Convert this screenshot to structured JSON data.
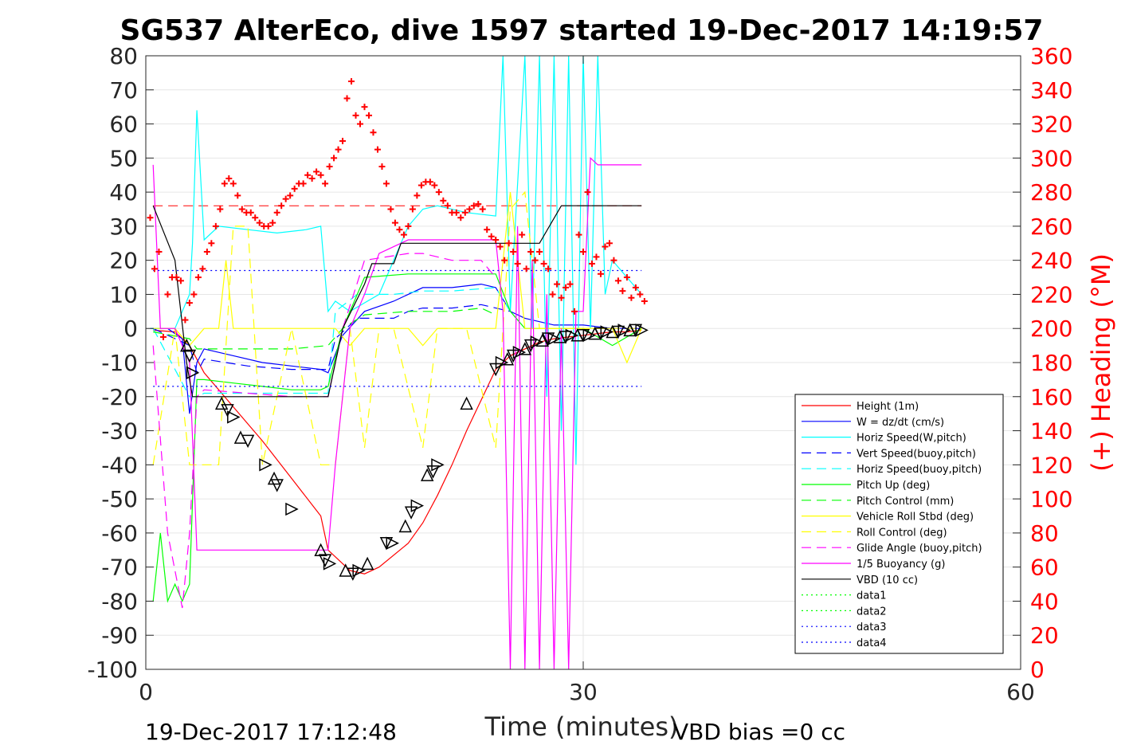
{
  "figure": {
    "title": "SG537 AlterEco, dive 1597 started 19-Dec-2017 14:19:57",
    "footer_left": "19-Dec-2017 17:12:48",
    "footer_right": "VBD bias =0 cc",
    "colors": {
      "height": "#ff0000",
      "w": "#0000ff",
      "hspeed": "#00ffff",
      "vspeed_buoy": "#0000ff",
      "hspeed_buoy": "#00ffff",
      "pitch": "#00ff00",
      "pitch_ctl": "#00ff00",
      "roll": "#ffff00",
      "roll_ctl": "#ffff00",
      "glide": "#ff00ff",
      "buoy": "#ff00ff",
      "vbd": "#000000",
      "heading": "#ff0000",
      "data1": "#00ff00",
      "data2": "#00ff00",
      "data3": "#0000ff",
      "data4": "#0000ff"
    }
  },
  "chart_data": {
    "type": "line",
    "title": "SG537 AlterEco, dive 1597 started 19-Dec-2017 14:19:57",
    "xlabel": "Time (minutes)",
    "ylabel": "",
    "y2label": "(+) Heading (°M)",
    "xlim": [
      0,
      60
    ],
    "ylim": [
      -100,
      80
    ],
    "y2lim": [
      0,
      360
    ],
    "xticks": [
      0,
      30,
      60
    ],
    "yticks": [
      80,
      70,
      60,
      50,
      40,
      30,
      20,
      10,
      0,
      -10,
      -20,
      -30,
      -40,
      -50,
      -60,
      -70,
      -80,
      -90,
      -100
    ],
    "y2ticks": [
      360,
      340,
      320,
      300,
      280,
      260,
      240,
      220,
      200,
      180,
      160,
      140,
      120,
      100,
      80,
      60,
      40,
      20,
      0
    ],
    "grid": true,
    "legend_position": "bottom-right",
    "legend": [
      "Height (1m)",
      "W = dz/dt (cm/s)",
      "Horiz Speed(W,pitch)",
      "Vert Speed(buoy,pitch)",
      "Horiz Speed(buoy,pitch)",
      "Pitch Up (deg)",
      "Pitch Control (mm)",
      "Vehicle Roll Stbd (deg)",
      "Roll Control (deg)",
      "Glide Angle (buoy,pitch)",
      "1/5 Buoyancy (g)",
      "VBD (10 cc)",
      "data1",
      "data2",
      "data3",
      "data4"
    ],
    "series": [
      {
        "key": "height",
        "name": "Height (1m)",
        "style": "solid",
        "x": [
          0.5,
          2,
          3,
          4,
          6,
          8,
          10,
          12,
          12.5,
          13.5,
          14,
          15,
          16,
          18,
          19,
          20,
          21,
          22,
          23,
          24,
          25,
          26,
          27,
          28,
          29,
          30,
          31,
          32,
          33,
          34
        ],
        "y": [
          -0.5,
          -1,
          -5,
          -13,
          -23,
          -33,
          -44,
          -55,
          -65,
          -69,
          -71,
          -72,
          -70,
          -63,
          -57,
          -49,
          -40,
          -30,
          -21,
          -12,
          -8,
          -6,
          -4,
          -3,
          -2.5,
          -2,
          -1.5,
          -1,
          -1,
          -0.5
        ]
      },
      {
        "key": "w",
        "name": "W = dz/dt (cm/s)",
        "style": "solid",
        "x": [
          0.3,
          1.5,
          2.5,
          3,
          3.5,
          4,
          6,
          8,
          10,
          12,
          12.5,
          13.5,
          15,
          17,
          18,
          19,
          21,
          23,
          24,
          25,
          26,
          27,
          28,
          30,
          32,
          34
        ],
        "y": [
          0,
          0,
          -3,
          -25,
          -10,
          -6,
          -8,
          -10,
          -11,
          -12,
          -13,
          -2,
          5,
          8,
          10,
          12,
          12,
          13,
          12,
          5,
          3,
          2,
          1,
          1,
          0,
          0
        ]
      },
      {
        "key": "hspeed",
        "name": "Horiz Speed(W,pitch)",
        "style": "solid",
        "x": [
          0.3,
          2,
          3,
          3.2,
          3.5,
          4,
          5,
          7,
          9,
          11,
          12,
          12.5,
          13,
          14,
          16,
          18,
          19,
          20,
          22,
          24,
          24.5,
          25,
          26,
          26.5,
          27,
          27.5,
          28,
          28.5,
          29,
          29.5,
          30,
          30.5,
          31,
          31.5,
          32,
          33,
          34
        ],
        "y": [
          0,
          0,
          10,
          25,
          64,
          26,
          30,
          29,
          28,
          29,
          30,
          5,
          8,
          5,
          10,
          30,
          35,
          36,
          34,
          33,
          80,
          5,
          80,
          0,
          80,
          -20,
          80,
          -30,
          80,
          -40,
          80,
          0,
          80,
          10,
          20,
          15,
          10
        ]
      },
      {
        "key": "vspeed_buoy",
        "name": "Vert Speed(buoy,pitch)",
        "style": "dash",
        "x": [
          0.5,
          3,
          3.5,
          4,
          7,
          10,
          12.5,
          13,
          14.5,
          17,
          18,
          19,
          21,
          23,
          24,
          25
        ],
        "y": [
          0,
          -5,
          -13,
          -9,
          -11,
          -12,
          -12,
          -3,
          3,
          3,
          5,
          6,
          6,
          7,
          6,
          5
        ]
      },
      {
        "key": "hspeed_buoy",
        "name": "Horiz Speed(buoy,pitch)",
        "style": "dash",
        "x": [
          0.5,
          3,
          3.5,
          4,
          7,
          10,
          12.5,
          13,
          14.5,
          17,
          19,
          21,
          24,
          25
        ],
        "y": [
          0,
          -20,
          -20,
          -19,
          -19,
          -19,
          -19,
          5,
          10,
          10,
          11,
          11,
          12,
          5
        ]
      },
      {
        "key": "pitch",
        "name": "Pitch Up (deg)",
        "style": "solid",
        "x": [
          0.5,
          1,
          1.5,
          2,
          2.5,
          3,
          3.5,
          4,
          6,
          8,
          10,
          12,
          12.5,
          13.5,
          15,
          18,
          20,
          22,
          24,
          25,
          26,
          28,
          30,
          32,
          34
        ],
        "y": [
          -80,
          -60,
          -80,
          -75,
          -80,
          -75,
          -15,
          -15,
          -16,
          -17,
          -18,
          -18,
          -17,
          0,
          15,
          16,
          16,
          16,
          16,
          5,
          0,
          0,
          0,
          -5,
          0
        ]
      },
      {
        "key": "pitch_ctl",
        "name": "Pitch Control (mm)",
        "style": "dash",
        "x": [
          0.5,
          3,
          3.5,
          4,
          7,
          10,
          12.5,
          13.5,
          15,
          18,
          19,
          21,
          23,
          24
        ],
        "y": [
          -1,
          -3,
          -6,
          -6,
          -6,
          -6,
          -5,
          0,
          4,
          5,
          5,
          5,
          6,
          4
        ]
      },
      {
        "key": "roll",
        "name": "Vehicle Roll Stbd (deg)",
        "style": "solid",
        "x": [
          0.5,
          2,
          3,
          4,
          5,
          5.5,
          6,
          7,
          8,
          10,
          11,
          12,
          13,
          14,
          15,
          16,
          17,
          18,
          19,
          20,
          21,
          22,
          23,
          24,
          25,
          26,
          27,
          28,
          30,
          32,
          33,
          34
        ],
        "y": [
          0,
          0,
          -5,
          0,
          0,
          20,
          0,
          0,
          0,
          0,
          0,
          0,
          0,
          -5,
          0,
          0,
          0,
          0,
          -5,
          0,
          0,
          0,
          0,
          0,
          40,
          0,
          0,
          0,
          0,
          0,
          -10,
          0
        ]
      },
      {
        "key": "roll_ctl",
        "name": "Roll Control (deg)",
        "style": "dash",
        "x": [
          0.5,
          2,
          3,
          4,
          5,
          6,
          7,
          8,
          10,
          12,
          13,
          14,
          15,
          16,
          17,
          19,
          20,
          22,
          24,
          25,
          26,
          27,
          28,
          30,
          32,
          34
        ],
        "y": [
          -40,
          0,
          -40,
          -40,
          -40,
          30,
          30,
          -40,
          0,
          -40,
          -40,
          0,
          -35,
          0,
          0,
          -35,
          0,
          0,
          -35,
          35,
          40,
          0,
          0,
          0,
          0,
          0
        ]
      },
      {
        "key": "glide",
        "name": "Glide Angle (buoy,pitch)",
        "style": "dash",
        "x": [
          0.5,
          1.5,
          2.5,
          3,
          3.5,
          4,
          7,
          10,
          12.5,
          13.5,
          15,
          18,
          19,
          21,
          23,
          24
        ],
        "y": [
          -5,
          -60,
          -82,
          -60,
          -20,
          -18,
          -19,
          -20,
          -20,
          0,
          20,
          22,
          22,
          20,
          20,
          15
        ]
      },
      {
        "key": "buoy",
        "name": "1/5 Buoyancy (g)",
        "style": "solid",
        "x": [
          0.5,
          1,
          2,
          3,
          3.5,
          5,
          8,
          10,
          12,
          12.5,
          13,
          14,
          15,
          16,
          18,
          20,
          22,
          24,
          24.5,
          25,
          25.5,
          26,
          26.5,
          27,
          27.5,
          28,
          28.5,
          29,
          29.5,
          30,
          30.5,
          31,
          32,
          33,
          34
        ],
        "y": [
          48,
          0,
          0,
          -10,
          -65,
          -65,
          -65,
          -65,
          -65,
          -65,
          -40,
          0,
          10,
          22,
          26,
          26,
          26,
          26,
          5,
          -100,
          30,
          -100,
          20,
          -100,
          10,
          -100,
          0,
          -100,
          5,
          5,
          50,
          48,
          48,
          48,
          48
        ]
      },
      {
        "key": "vbd",
        "name": "VBD (10 cc)",
        "style": "solid",
        "x": [
          0.5,
          2,
          2.8,
          3.2,
          7,
          10,
          12.5,
          13.5,
          15,
          15.5,
          16,
          17,
          17.5,
          18,
          24,
          24.5,
          27,
          28.5,
          29,
          30,
          31,
          34
        ],
        "y": [
          36,
          20,
          -10,
          -20,
          -20,
          -20,
          -20,
          0,
          13,
          19,
          19,
          19,
          25,
          25,
          25,
          25,
          25,
          36,
          36,
          36,
          36,
          36
        ]
      },
      {
        "key": "data1",
        "name": "data1",
        "style": "dot",
        "x": [],
        "y": []
      },
      {
        "key": "data2",
        "name": "data2",
        "style": "dot",
        "x": [],
        "y": []
      },
      {
        "key": "data3",
        "name": "data3",
        "style": "dot",
        "x": [
          0.5,
          34
        ],
        "y": [
          17,
          17
        ]
      },
      {
        "key": "data4",
        "name": "data4",
        "style": "dot",
        "x": [
          0.5,
          34
        ],
        "y": [
          -17,
          -17
        ]
      }
    ],
    "heading_reference": {
      "y2": 272
    },
    "heading_points": {
      "y2_units": true,
      "x": [
        0.3,
        0.6,
        0.9,
        1.2,
        1.5,
        1.8,
        2.1,
        2.4,
        2.7,
        3.0,
        3.3,
        3.6,
        3.9,
        4.2,
        4.5,
        4.8,
        5.1,
        5.4,
        5.7,
        6.0,
        6.3,
        6.6,
        6.9,
        7.2,
        7.5,
        7.8,
        8.1,
        8.4,
        8.7,
        9.0,
        9.3,
        9.6,
        9.9,
        10.2,
        10.5,
        10.8,
        11.1,
        11.4,
        11.7,
        12.0,
        12.3,
        12.6,
        12.9,
        13.2,
        13.5,
        13.8,
        14.1,
        14.4,
        14.7,
        15.0,
        15.3,
        15.6,
        15.9,
        16.2,
        16.5,
        16.8,
        17.1,
        17.4,
        17.7,
        18.0,
        18.3,
        18.6,
        18.9,
        19.2,
        19.5,
        19.8,
        20.1,
        20.4,
        20.7,
        21.0,
        21.3,
        21.6,
        21.9,
        22.2,
        22.5,
        22.8,
        23.1,
        23.4,
        23.7,
        24.0,
        24.3,
        24.6,
        24.9,
        25.2,
        25.5,
        25.8,
        26.1,
        26.4,
        26.7,
        27.0,
        27.3,
        27.6,
        27.9,
        28.2,
        28.5,
        28.8,
        29.1,
        29.4,
        29.7,
        30.0,
        30.3,
        30.6,
        30.9,
        31.2,
        31.5,
        31.8,
        32.1,
        32.4,
        32.7,
        33.0,
        33.3,
        33.6,
        33.9,
        34.2
      ],
      "y": [
        265,
        235,
        245,
        195,
        220,
        230,
        230,
        228,
        205,
        215,
        220,
        230,
        235,
        245,
        250,
        260,
        270,
        285,
        288,
        285,
        278,
        270,
        268,
        268,
        265,
        262,
        260,
        260,
        262,
        268,
        272,
        276,
        278,
        282,
        285,
        285,
        290,
        288,
        292,
        290,
        285,
        295,
        300,
        305,
        310,
        335,
        345,
        325,
        320,
        330,
        325,
        315,
        305,
        295,
        285,
        270,
        262,
        258,
        255,
        260,
        270,
        278,
        284,
        286,
        286,
        284,
        280,
        275,
        272,
        268,
        268,
        265,
        268,
        270,
        272,
        273,
        270,
        258,
        254,
        252,
        248,
        240,
        250,
        245,
        238,
        255,
        235,
        245,
        240,
        245,
        238,
        235,
        220,
        226,
        218,
        224,
        226,
        210,
        255,
        245,
        280,
        238,
        242,
        232,
        248,
        250,
        240,
        228,
        222,
        230,
        218,
        224,
        220,
        216
      ]
    },
    "markers": {
      "x": [
        2.8,
        3.0,
        3.2,
        5.2,
        5.6,
        6.0,
        6.5,
        7.0,
        8.2,
        8.8,
        9.0,
        10.0,
        12.0,
        12.3,
        12.6,
        13.7,
        14.2,
        14.6,
        15.2,
        16.5,
        16.9,
        17.8,
        18.2,
        18.6,
        19.3,
        19.7,
        20.0,
        22.0,
        24.0,
        24.4,
        24.8,
        25.2,
        25.6,
        26.0,
        26.4,
        26.8,
        27.2,
        27.6,
        28.0,
        28.4,
        28.8,
        29.2,
        29.6,
        30.0,
        30.4,
        30.8,
        31.2,
        31.6,
        32.0,
        32.4,
        32.8,
        33.2,
        33.6,
        34.0
      ],
      "y": [
        -5,
        -8,
        -13,
        -22,
        -24,
        -26,
        -32,
        -33,
        -40,
        -44,
        -46,
        -53,
        -65,
        -68,
        -69,
        -71,
        -72,
        -71,
        -69,
        -63,
        -63,
        -58,
        -54,
        -52,
        -43,
        -42,
        -40,
        -22,
        -12,
        -10,
        -9,
        -8,
        -7,
        -6,
        -5,
        -4,
        -3.5,
        -3,
        -3,
        -2.5,
        -2.5,
        -2,
        -2,
        -2,
        -2,
        -1.5,
        -1.5,
        -1,
        -1,
        -1,
        -0.5,
        -0.5,
        -0.5,
        -0.5
      ]
    }
  }
}
